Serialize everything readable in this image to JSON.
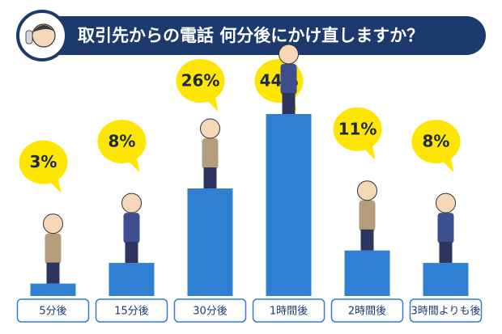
{
  "chart_data": {
    "type": "bar",
    "title": "取引先からの電話 何分後にかけ直しますか？",
    "categories": [
      "5分後",
      "15分後",
      "30分後",
      "1時間後",
      "2時間後",
      "3時間よりも後"
    ],
    "values": [
      3,
      8,
      26,
      44,
      11,
      8
    ],
    "value_labels": [
      "3%",
      "8%",
      "26%",
      "44%",
      "11%",
      "8%"
    ],
    "color": "#2f7fd3"
  }
}
